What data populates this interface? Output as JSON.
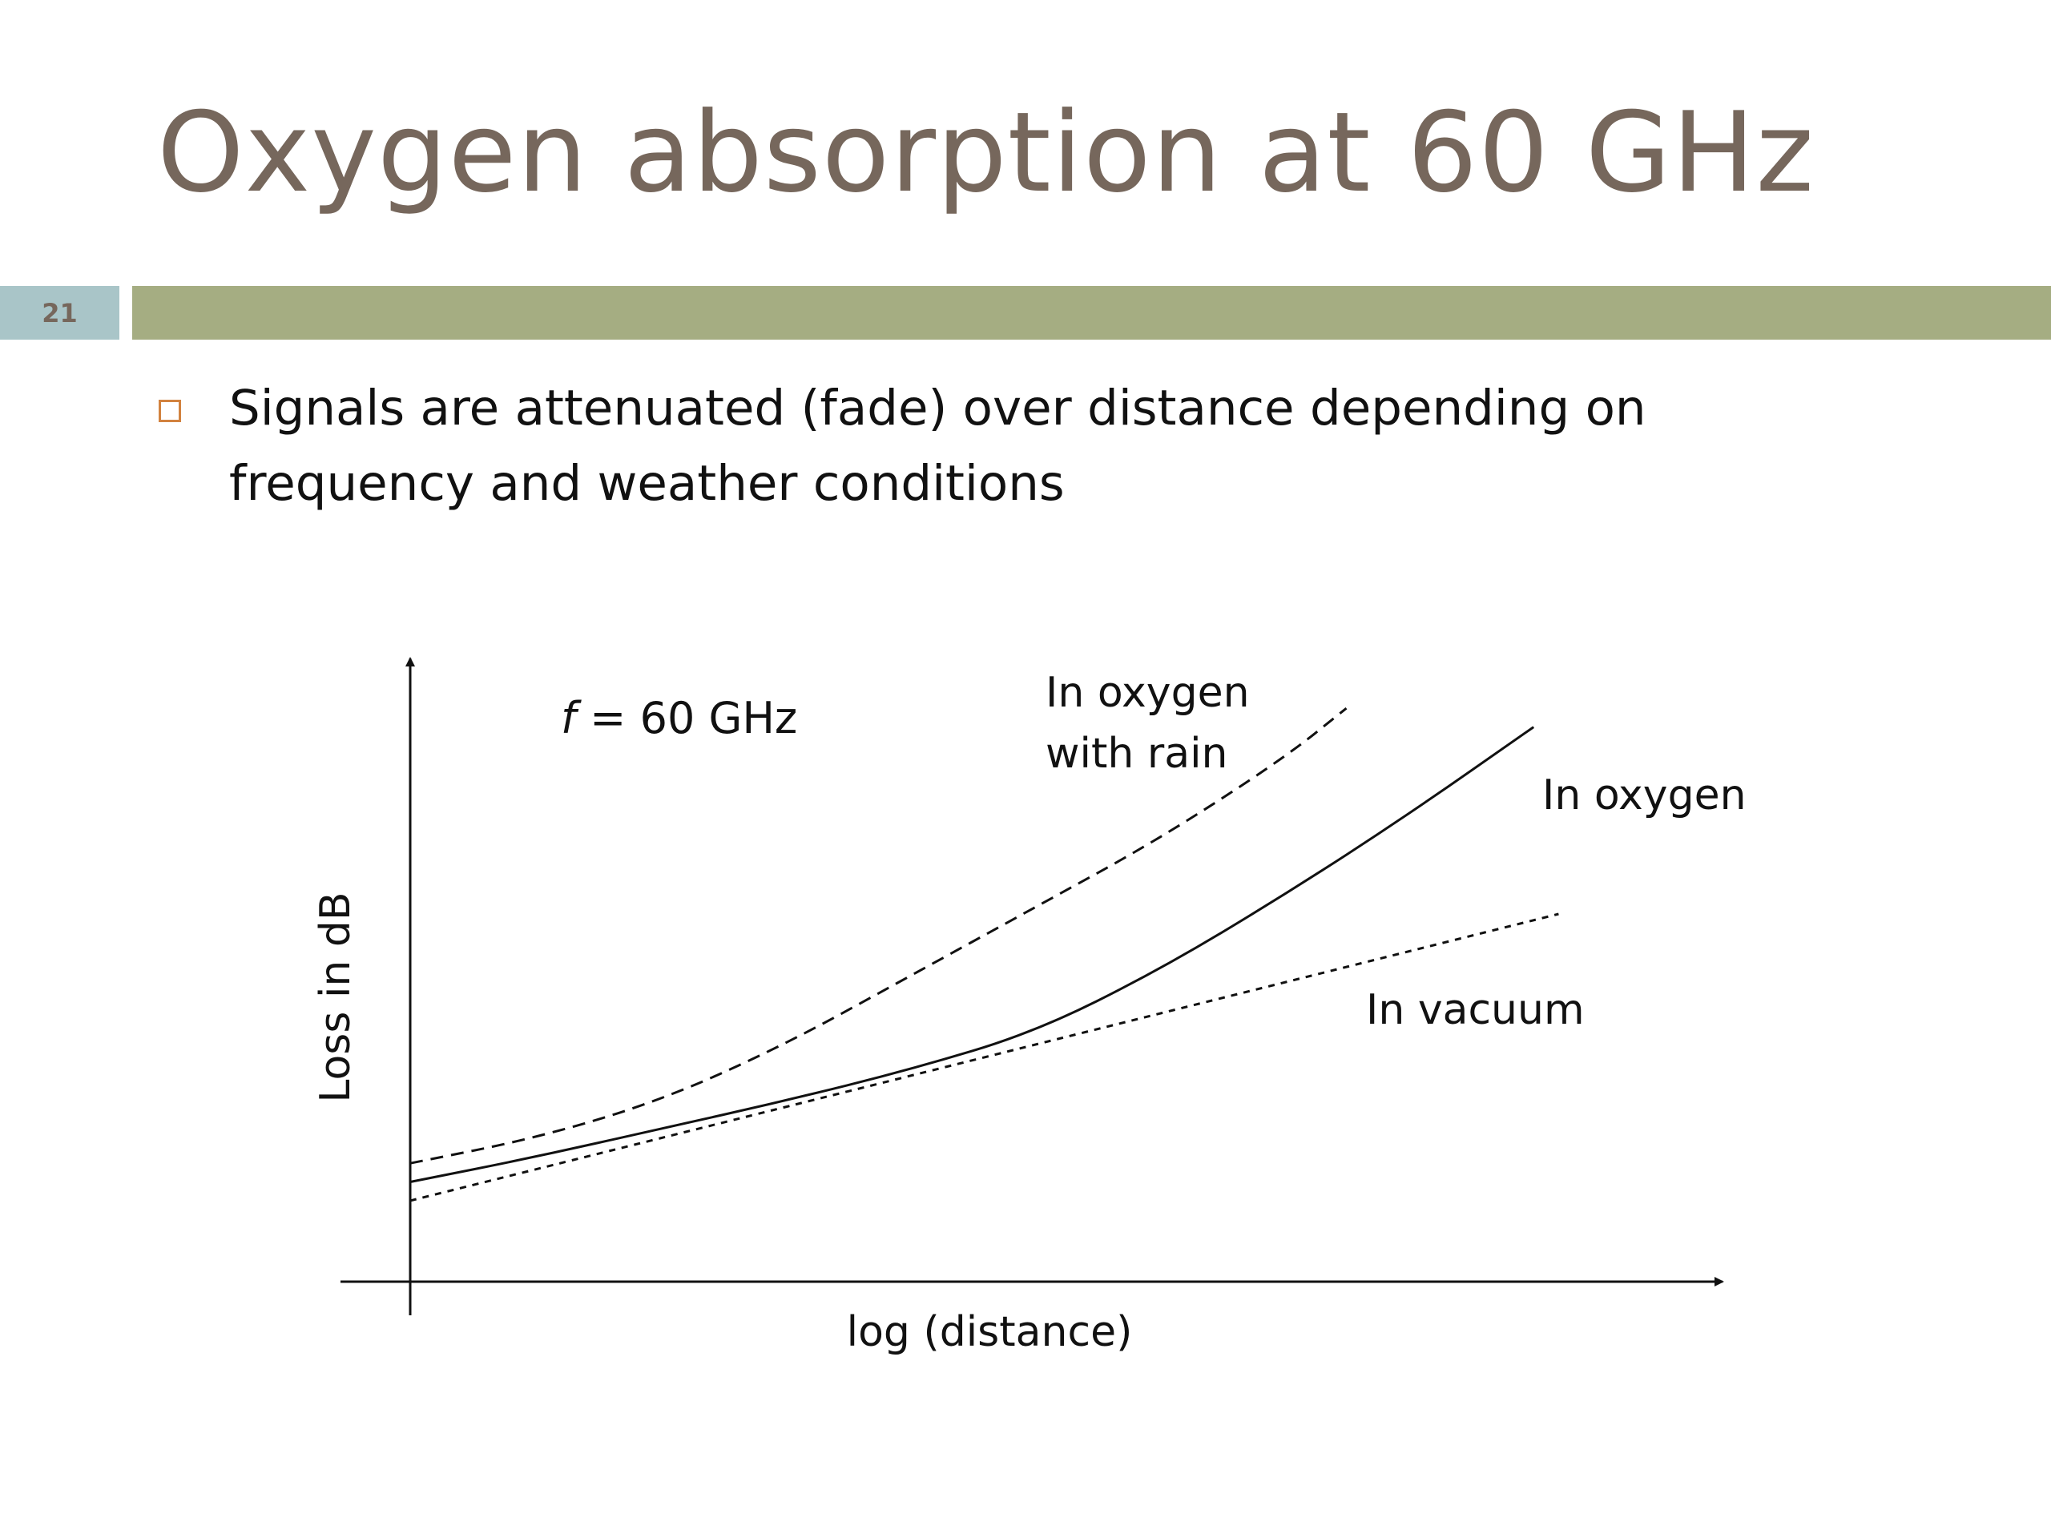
{
  "slide": {
    "title": "Oxygen absorption at 60 GHz",
    "number": "21",
    "bullet_lines": [
      "Signals are attenuated (fade) over distance depending on",
      "frequency and weather conditions"
    ]
  },
  "colors": {
    "title": "#76675c",
    "title_rule": "#a5ad82",
    "slide_number_box": "#a9c5c8",
    "bullet_marker": "#d2823f",
    "curve": "#111111"
  },
  "chart_data": {
    "type": "line",
    "title": "",
    "annotation": {
      "italic_part": "f",
      "text": " = 60 GHz"
    },
    "xlabel": "log (distance)",
    "ylabel": "Loss in dB",
    "xlim": [
      0,
      10
    ],
    "ylim": [
      0,
      10
    ],
    "ticks": "none",
    "grid": false,
    "axes": "arrows",
    "series": [
      {
        "label_lines": [
          "In oxygen",
          "with rain"
        ],
        "style": "dashed",
        "x": [
          0,
          1,
          2,
          3,
          4,
          5,
          6,
          7,
          7.5
        ],
        "y": [
          1.9,
          2.3,
          2.9,
          3.8,
          4.9,
          6.0,
          7.1,
          8.4,
          9.2
        ]
      },
      {
        "label_lines": [
          "In oxygen"
        ],
        "style": "solid",
        "x": [
          0,
          1,
          2,
          3,
          4,
          5,
          6,
          7,
          8,
          9
        ],
        "y": [
          1.6,
          2.0,
          2.45,
          2.9,
          3.4,
          4.0,
          5.0,
          6.2,
          7.5,
          8.9
        ]
      },
      {
        "label_lines": [
          "In vacuum"
        ],
        "style": "dotted-dashed",
        "x": [
          0,
          9.2
        ],
        "y": [
          1.3,
          5.9
        ]
      }
    ]
  }
}
